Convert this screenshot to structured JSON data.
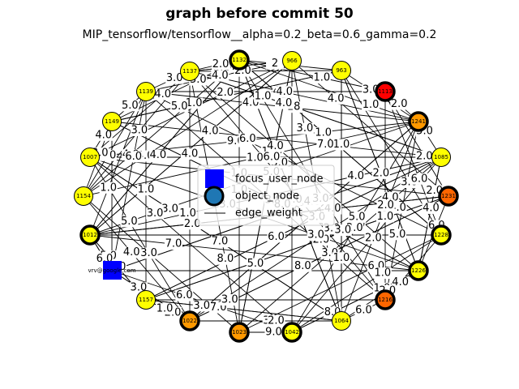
{
  "title": "graph before commit 50",
  "subtitle": "MIP_tensorflow/tensorflow__alpha=0.2_beta=0.6_gamma=0.2",
  "legend": {
    "focus_label": "focus_user_node",
    "object_label": "object_node",
    "edge_label": "edge_weight"
  },
  "colors": {
    "yellow": "#ffff00",
    "orange": "#ff9900",
    "dark_orange": "#ff6600",
    "red": "#ff0000",
    "focus": "#0000ff",
    "legend_object": "#1f77b4"
  },
  "focus_node": {
    "id": "vrv@google.com",
    "label": "vrv@google.com"
  },
  "nodes": [
    {
      "id": "1132",
      "color": "yellow",
      "thick": true
    },
    {
      "id": "966",
      "color": "yellow",
      "thick": false
    },
    {
      "id": "963",
      "color": "yellow",
      "thick": false
    },
    {
      "id": "1113",
      "color": "red",
      "thick": true
    },
    {
      "id": "1241",
      "color": "orange",
      "thick": true
    },
    {
      "id": "1085",
      "color": "yellow",
      "thick": false
    },
    {
      "id": "1231",
      "color": "dark_orange",
      "thick": true
    },
    {
      "id": "1228",
      "color": "yellow",
      "thick": true
    },
    {
      "id": "1226",
      "color": "yellow",
      "thick": true
    },
    {
      "id": "1216",
      "color": "dark_orange",
      "thick": true
    },
    {
      "id": "1064",
      "color": "yellow",
      "thick": false
    },
    {
      "id": "1042",
      "color": "yellow",
      "thick": true
    },
    {
      "id": "1023",
      "color": "orange",
      "thick": true
    },
    {
      "id": "1022",
      "color": "orange",
      "thick": true
    },
    {
      "id": "1157",
      "color": "yellow",
      "thick": false
    },
    {
      "id": "1012",
      "color": "yellow",
      "thick": true
    },
    {
      "id": "1154",
      "color": "yellow",
      "thick": false
    },
    {
      "id": "1007",
      "color": "yellow",
      "thick": false
    },
    {
      "id": "1149",
      "color": "yellow",
      "thick": false
    },
    {
      "id": "1139",
      "color": "yellow",
      "thick": false
    },
    {
      "id": "1137",
      "color": "yellow",
      "thick": false
    }
  ],
  "edge_labels": [
    "3.0",
    "3.0",
    "18",
    "1.0",
    "2",
    "5.0",
    "6.0",
    "3.0",
    "4.0",
    "3.0",
    "4.0",
    "5.0",
    "4.0",
    "1.0",
    "1.0",
    "3.0",
    "2.0",
    "1.0",
    "6.0",
    "4.0",
    "2.0",
    "1.0",
    "3.0",
    "4.0",
    "2.0",
    "4.0",
    "9.0",
    "5.0",
    "4.0",
    "3.0",
    "4.0",
    "1.0",
    "2.0",
    "3.0",
    "5.0",
    "3.0",
    "4.0",
    "6.0",
    "1.0",
    "2.0",
    "4.0",
    "2.0",
    "1.0",
    "3.0",
    "6.0",
    "1.0",
    "4.0",
    "3.0",
    "1.0",
    "7.0",
    "2.0",
    "5.0",
    "3.0",
    "4.0",
    "1.0",
    "1.0",
    "3.0",
    "5.0",
    "2.0",
    "2.0",
    "6.0",
    "1.0",
    "3.0",
    "9.0",
    "1.0",
    "8.0",
    "6.0",
    "3.0",
    "1.0",
    "7.0",
    "2.0",
    "4.0",
    "8.0",
    "4.0",
    "2.0",
    "3.0",
    "5.0",
    "1.0",
    "7.0",
    "3.0",
    "3.0",
    "6.0",
    "6.0",
    "5.0",
    "4.0",
    "4.0",
    "1.0",
    "2.0",
    "6.0",
    "5.0",
    "4.0",
    "3.0",
    "1.0",
    "1.0",
    "4.0",
    "5.0",
    "3.0",
    "7.0",
    "4.0",
    "3.0",
    "6.0",
    "2.0",
    "5.0",
    "3.0",
    "7.0",
    "4.0",
    "8.0",
    "6.0",
    "4.0",
    "4.0",
    "3.0",
    "5.0",
    "1.0",
    "2.0",
    "6.0",
    "8.0",
    "1.0",
    "4.0",
    "2.0",
    "3.0"
  ]
}
